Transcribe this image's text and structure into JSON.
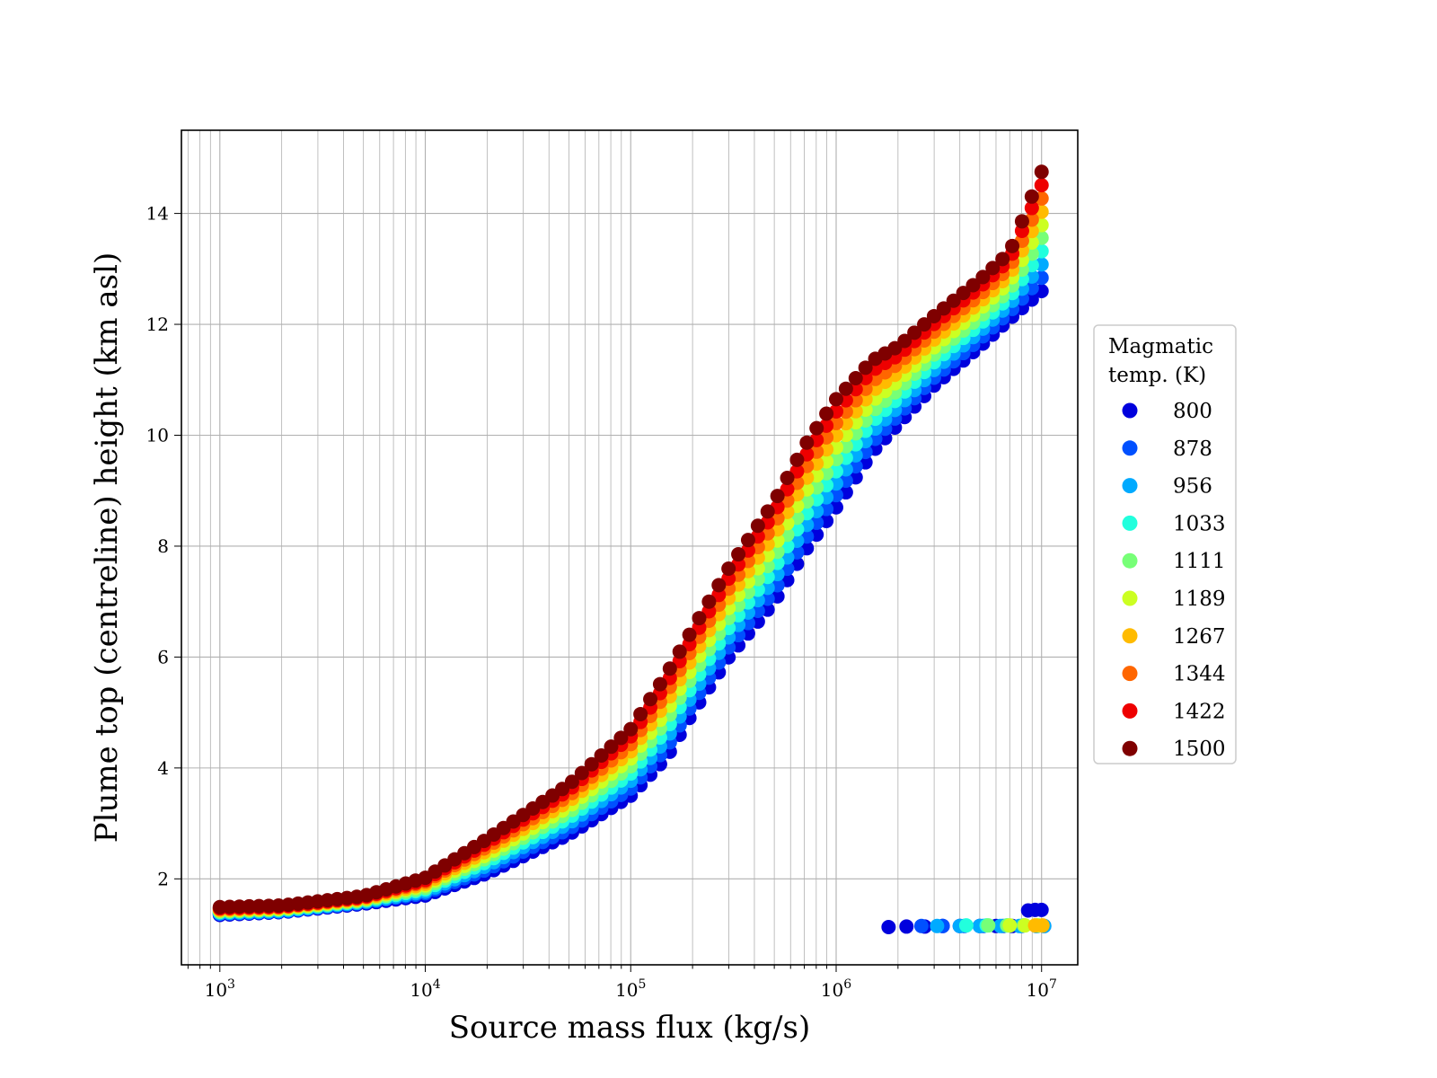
{
  "chart_data": {
    "type": "scatter",
    "title": "",
    "xlabel": "Source mass flux (kg/s)",
    "ylabel": "Plume top (centreline) height (km asl)",
    "xscale": "log",
    "xlim": [
      650,
      15000000
    ],
    "ylim": [
      0.45,
      15.5
    ],
    "x_ticks": [
      1000,
      10000,
      100000,
      1000000,
      10000000
    ],
    "x_tick_labels": [
      {
        "base": "10",
        "exp": "3"
      },
      {
        "base": "10",
        "exp": "4"
      },
      {
        "base": "10",
        "exp": "5"
      },
      {
        "base": "10",
        "exp": "6"
      },
      {
        "base": "10",
        "exp": "7"
      }
    ],
    "y_ticks": [
      2,
      4,
      6,
      8,
      10,
      12,
      14
    ],
    "y_tick_labels": [
      "2",
      "4",
      "6",
      "8",
      "10",
      "12",
      "14"
    ],
    "grid": "major and minor",
    "legend": {
      "title_lines": [
        "Magmatic",
        "temp. (K)"
      ],
      "placement": "outside right"
    },
    "series": [
      {
        "name": "800",
        "color": "#0000dd",
        "points": [
          [
            1000,
            1.35
          ],
          [
            2000,
            1.4
          ],
          [
            5000,
            1.55
          ],
          [
            10000,
            1.7
          ],
          [
            20000,
            2.1
          ],
          [
            50000,
            2.8
          ],
          [
            100000,
            3.5
          ],
          [
            150000,
            4.2
          ],
          [
            200000,
            5.0
          ],
          [
            300000,
            6.0
          ],
          [
            500000,
            7.0
          ],
          [
            700000,
            7.9
          ],
          [
            1000000,
            8.7
          ],
          [
            1500000,
            9.7
          ],
          [
            2000000,
            10.2
          ],
          [
            3000000,
            10.9
          ],
          [
            5000000,
            11.6
          ],
          [
            7000000,
            12.1
          ],
          [
            10000000,
            12.6
          ]
        ]
      },
      {
        "name": "878",
        "color": "#0050ff",
        "points": [
          [
            1000,
            1.37
          ],
          [
            2000,
            1.41
          ],
          [
            5000,
            1.57
          ],
          [
            10000,
            1.74
          ],
          [
            20000,
            2.17
          ],
          [
            50000,
            2.9
          ],
          [
            100000,
            3.63
          ],
          [
            150000,
            4.37
          ],
          [
            200000,
            5.17
          ],
          [
            300000,
            6.18
          ],
          [
            500000,
            7.2
          ],
          [
            700000,
            8.11
          ],
          [
            1000000,
            8.92
          ],
          [
            1500000,
            9.88
          ],
          [
            2000000,
            10.36
          ],
          [
            3000000,
            11.04
          ],
          [
            5000000,
            11.73
          ],
          [
            7000000,
            12.23
          ],
          [
            10000000,
            12.84
          ]
        ]
      },
      {
        "name": "956",
        "color": "#00aaff",
        "points": [
          [
            1000,
            1.38
          ],
          [
            2000,
            1.42
          ],
          [
            5000,
            1.58
          ],
          [
            10000,
            1.77
          ],
          [
            20000,
            2.24
          ],
          [
            50000,
            3.0
          ],
          [
            100000,
            3.77
          ],
          [
            150000,
            4.53
          ],
          [
            200000,
            5.33
          ],
          [
            300000,
            6.36
          ],
          [
            500000,
            7.4
          ],
          [
            700000,
            8.32
          ],
          [
            1000000,
            9.13
          ],
          [
            1500000,
            10.07
          ],
          [
            2000000,
            10.51
          ],
          [
            3000000,
            11.18
          ],
          [
            5000000,
            11.87
          ],
          [
            7000000,
            12.37
          ],
          [
            10000000,
            13.08
          ]
        ]
      },
      {
        "name": "1033",
        "color": "#22ffdd",
        "points": [
          [
            1000,
            1.4
          ],
          [
            2000,
            1.44
          ],
          [
            5000,
            1.6
          ],
          [
            10000,
            1.81
          ],
          [
            20000,
            2.31
          ],
          [
            50000,
            3.1
          ],
          [
            100000,
            3.9
          ],
          [
            150000,
            4.7
          ],
          [
            200000,
            5.5
          ],
          [
            300000,
            6.53
          ],
          [
            500000,
            7.6
          ],
          [
            700000,
            8.53
          ],
          [
            1000000,
            9.35
          ],
          [
            1500000,
            10.25
          ],
          [
            2000000,
            10.67
          ],
          [
            3000000,
            11.32
          ],
          [
            5000000,
            12.0
          ],
          [
            7000000,
            12.5
          ],
          [
            10000000,
            13.32
          ]
        ]
      },
      {
        "name": "1111",
        "color": "#77ff77",
        "points": [
          [
            1000,
            1.41
          ],
          [
            2000,
            1.45
          ],
          [
            5000,
            1.61
          ],
          [
            10000,
            1.84
          ],
          [
            20000,
            2.38
          ],
          [
            50000,
            3.2
          ],
          [
            100000,
            4.03
          ],
          [
            150000,
            4.87
          ],
          [
            200000,
            5.67
          ],
          [
            300000,
            6.71
          ],
          [
            500000,
            7.8
          ],
          [
            700000,
            8.74
          ],
          [
            1000000,
            9.57
          ],
          [
            1500000,
            10.43
          ],
          [
            2000000,
            10.82
          ],
          [
            3000000,
            11.46
          ],
          [
            5000000,
            12.13
          ],
          [
            7000000,
            12.63
          ],
          [
            10000000,
            13.56
          ]
        ]
      },
      {
        "name": "1189",
        "color": "#ccff22",
        "points": [
          [
            1000,
            1.43
          ],
          [
            2000,
            1.46
          ],
          [
            5000,
            1.63
          ],
          [
            10000,
            1.88
          ],
          [
            20000,
            2.44
          ],
          [
            50000,
            3.3
          ],
          [
            100000,
            4.17
          ],
          [
            150000,
            5.03
          ],
          [
            200000,
            5.83
          ],
          [
            300000,
            6.89
          ],
          [
            500000,
            8.0
          ],
          [
            700000,
            8.96
          ],
          [
            1000000,
            9.78
          ],
          [
            1500000,
            10.62
          ],
          [
            2000000,
            10.98
          ],
          [
            3000000,
            11.59
          ],
          [
            5000000,
            12.27
          ],
          [
            7000000,
            12.77
          ],
          [
            10000000,
            13.79
          ]
        ]
      },
      {
        "name": "1267",
        "color": "#ffbb00",
        "points": [
          [
            1000,
            1.44
          ],
          [
            2000,
            1.48
          ],
          [
            5000,
            1.64
          ],
          [
            10000,
            1.91
          ],
          [
            20000,
            2.51
          ],
          [
            50000,
            3.4
          ],
          [
            100000,
            4.3
          ],
          [
            150000,
            5.2
          ],
          [
            200000,
            6.0
          ],
          [
            300000,
            7.07
          ],
          [
            500000,
            8.2
          ],
          [
            700000,
            9.17
          ],
          [
            1000000,
            10.0
          ],
          [
            1500000,
            10.8
          ],
          [
            2000000,
            11.13
          ],
          [
            3000000,
            11.73
          ],
          [
            5000000,
            12.4
          ],
          [
            7000000,
            12.9
          ],
          [
            10000000,
            14.03
          ]
        ]
      },
      {
        "name": "1344",
        "color": "#ff6600",
        "points": [
          [
            1000,
            1.46
          ],
          [
            2000,
            1.49
          ],
          [
            5000,
            1.66
          ],
          [
            10000,
            1.95
          ],
          [
            20000,
            2.58
          ],
          [
            50000,
            3.5
          ],
          [
            100000,
            4.43
          ],
          [
            150000,
            5.37
          ],
          [
            200000,
            6.17
          ],
          [
            300000,
            7.24
          ],
          [
            500000,
            8.4
          ],
          [
            700000,
            9.38
          ],
          [
            1000000,
            10.22
          ],
          [
            1500000,
            10.98
          ],
          [
            2000000,
            11.29
          ],
          [
            3000000,
            11.87
          ],
          [
            5000000,
            12.53
          ],
          [
            7000000,
            13.03
          ],
          [
            10000000,
            14.27
          ]
        ]
      },
      {
        "name": "1422",
        "color": "#ee0000",
        "points": [
          [
            1000,
            1.47
          ],
          [
            2000,
            1.5
          ],
          [
            5000,
            1.67
          ],
          [
            10000,
            1.98
          ],
          [
            20000,
            2.65
          ],
          [
            50000,
            3.6
          ],
          [
            100000,
            4.57
          ],
          [
            150000,
            5.53
          ],
          [
            200000,
            6.33
          ],
          [
            300000,
            7.42
          ],
          [
            500000,
            8.6
          ],
          [
            700000,
            9.59
          ],
          [
            1000000,
            10.43
          ],
          [
            1500000,
            11.17
          ],
          [
            2000000,
            11.44
          ],
          [
            3000000,
            12.01
          ],
          [
            5000000,
            12.67
          ],
          [
            7000000,
            13.17
          ],
          [
            10000000,
            14.51
          ]
        ]
      },
      {
        "name": "1500",
        "color": "#7f0000",
        "points": [
          [
            1000,
            1.49
          ],
          [
            2000,
            1.52
          ],
          [
            5000,
            1.69
          ],
          [
            10000,
            2.02
          ],
          [
            20000,
            2.72
          ],
          [
            50000,
            3.7
          ],
          [
            100000,
            4.7
          ],
          [
            150000,
            5.7
          ],
          [
            200000,
            6.5
          ],
          [
            300000,
            7.6
          ],
          [
            500000,
            8.8
          ],
          [
            700000,
            9.8
          ],
          [
            1000000,
            10.65
          ],
          [
            1500000,
            11.35
          ],
          [
            2000000,
            11.6
          ],
          [
            3000000,
            12.15
          ],
          [
            5000000,
            12.8
          ],
          [
            7000000,
            13.3
          ],
          [
            10000000,
            14.75
          ]
        ]
      }
    ],
    "low_cluster": [
      {
        "series": "800",
        "points": [
          [
            1800000,
            1.13
          ],
          [
            2200000,
            1.14
          ],
          [
            2700000,
            1.14
          ],
          [
            3300000,
            1.15
          ],
          [
            4000000,
            1.15
          ],
          [
            5000000,
            1.15
          ],
          [
            6000000,
            1.15
          ],
          [
            7200000,
            1.15
          ],
          [
            8600000,
            1.43
          ],
          [
            9300000,
            1.44
          ],
          [
            10000000,
            1.44
          ]
        ]
      },
      {
        "series": "878",
        "points": [
          [
            2600000,
            1.15
          ],
          [
            3300000,
            1.15
          ],
          [
            4200000,
            1.15
          ],
          [
            5200000,
            1.15
          ],
          [
            6500000,
            1.15
          ],
          [
            8000000,
            1.15
          ],
          [
            9500000,
            1.15
          ],
          [
            10300000,
            1.15
          ]
        ]
      },
      {
        "series": "956",
        "points": [
          [
            3100000,
            1.15
          ],
          [
            4000000,
            1.15
          ],
          [
            5000000,
            1.15
          ],
          [
            6300000,
            1.15
          ],
          [
            7800000,
            1.15
          ],
          [
            9400000,
            1.15
          ],
          [
            10300000,
            1.15
          ]
        ]
      },
      {
        "series": "1033",
        "points": [
          [
            4300000,
            1.16
          ],
          [
            5400000,
            1.16
          ],
          [
            6800000,
            1.16
          ],
          [
            8200000,
            1.16
          ],
          [
            9600000,
            1.16
          ]
        ]
      },
      {
        "series": "1111",
        "points": [
          [
            5500000,
            1.16
          ],
          [
            6800000,
            1.16
          ],
          [
            8200000,
            1.16
          ],
          [
            9600000,
            1.16
          ]
        ]
      },
      {
        "series": "1189",
        "points": [
          [
            7000000,
            1.16
          ],
          [
            8300000,
            1.16
          ],
          [
            9600000,
            1.16
          ]
        ]
      },
      {
        "series": "1267",
        "points": [
          [
            9300000,
            1.16
          ],
          [
            10100000,
            1.16
          ]
        ]
      }
    ]
  }
}
